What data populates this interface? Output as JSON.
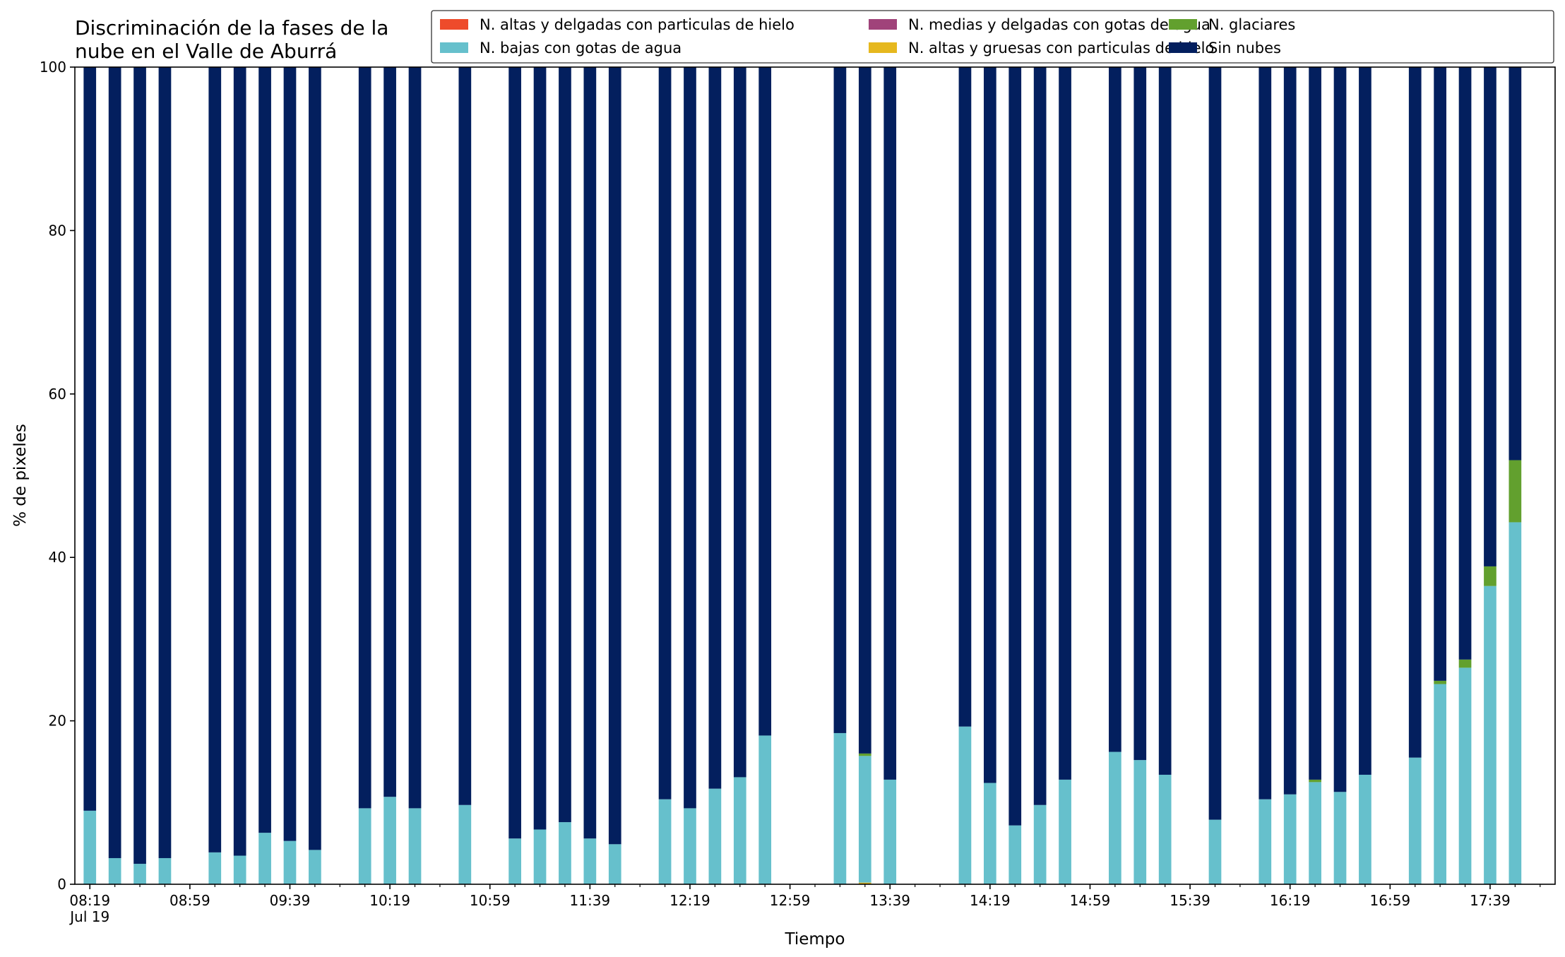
{
  "chart_data": {
    "type": "bar",
    "stacked": true,
    "title": "Discriminación de la fases de la nube en el Valle de Aburrá",
    "title_lines": [
      "Discriminación de la fases de la",
      "nube en el Valle de Aburrá"
    ],
    "xlabel": "Tiempo",
    "ylabel": "% de pixeles",
    "ylim": [
      0,
      100
    ],
    "yticks": [
      "0",
      "20",
      "40",
      "60",
      "80",
      "100"
    ],
    "xlim_minutes": [
      -6,
      586
    ],
    "x_ticks": [
      {
        "t": 0,
        "label": "08:19",
        "sublabel": "Jul 19"
      },
      {
        "t": 40,
        "label": "08:59"
      },
      {
        "t": 80,
        "label": "09:39"
      },
      {
        "t": 120,
        "label": "10:19"
      },
      {
        "t": 160,
        "label": "10:59"
      },
      {
        "t": 200,
        "label": "11:39"
      },
      {
        "t": 240,
        "label": "12:19"
      },
      {
        "t": 280,
        "label": "12:59"
      },
      {
        "t": 320,
        "label": "13:39"
      },
      {
        "t": 360,
        "label": "14:19"
      },
      {
        "t": 400,
        "label": "14:59"
      },
      {
        "t": 440,
        "label": "15:39"
      },
      {
        "t": 480,
        "label": "16:19"
      },
      {
        "t": 520,
        "label": "16:59"
      },
      {
        "t": 560,
        "label": "17:39"
      }
    ],
    "minor_tick_step_minutes": 10,
    "bar_width_minutes": 5,
    "legend_position": "top-right",
    "series": [
      {
        "name": "N. altas y delgadas con particulas de hielo",
        "color": "#ee4b2b"
      },
      {
        "name": "N. altas y gruesas con particulas de hielo",
        "color": "#e6b81e"
      },
      {
        "name": "N. bajas con gotas de agua",
        "color": "#66c0cc"
      },
      {
        "name": "N. glaciares",
        "color": "#62a02e"
      },
      {
        "name": "N. medias y delgadas con gotas de agua",
        "color": "#a0437a"
      },
      {
        "name": "Sin nubes",
        "color": "#031f5e"
      }
    ],
    "legend_order": [
      0,
      2,
      4,
      1,
      3,
      5
    ],
    "bars": [
      {
        "t": 0,
        "v": [
          0,
          0,
          9.0,
          0,
          0,
          91.0
        ]
      },
      {
        "t": 10,
        "v": [
          0,
          0,
          3.2,
          0,
          0,
          96.8
        ]
      },
      {
        "t": 20,
        "v": [
          0,
          0,
          2.5,
          0,
          0,
          97.5
        ]
      },
      {
        "t": 30,
        "v": [
          0,
          0,
          3.2,
          0,
          0,
          96.8
        ]
      },
      {
        "t": 50,
        "v": [
          0,
          0,
          3.9,
          0,
          0,
          96.1
        ]
      },
      {
        "t": 60,
        "v": [
          0,
          0,
          3.5,
          0,
          0,
          96.5
        ]
      },
      {
        "t": 70,
        "v": [
          0,
          0,
          6.3,
          0,
          0,
          93.7
        ]
      },
      {
        "t": 80,
        "v": [
          0,
          0,
          5.3,
          0,
          0,
          94.7
        ]
      },
      {
        "t": 90,
        "v": [
          0,
          0,
          4.2,
          0,
          0,
          95.8
        ]
      },
      {
        "t": 110,
        "v": [
          0,
          0,
          9.3,
          0,
          0,
          90.7
        ]
      },
      {
        "t": 120,
        "v": [
          0,
          0,
          10.7,
          0,
          0,
          89.3
        ]
      },
      {
        "t": 130,
        "v": [
          0,
          0,
          9.3,
          0,
          0,
          90.7
        ]
      },
      {
        "t": 150,
        "v": [
          0,
          0,
          9.7,
          0,
          0,
          90.3
        ]
      },
      {
        "t": 170,
        "v": [
          0,
          0,
          5.6,
          0,
          0,
          94.4
        ]
      },
      {
        "t": 180,
        "v": [
          0,
          0,
          6.7,
          0,
          0,
          93.3
        ]
      },
      {
        "t": 190,
        "v": [
          0,
          0,
          7.6,
          0,
          0,
          92.4
        ]
      },
      {
        "t": 200,
        "v": [
          0,
          0,
          5.6,
          0,
          0,
          94.4
        ]
      },
      {
        "t": 210,
        "v": [
          0,
          0,
          4.9,
          0,
          0,
          95.1
        ]
      },
      {
        "t": 230,
        "v": [
          0,
          0,
          10.4,
          0,
          0,
          89.6
        ]
      },
      {
        "t": 240,
        "v": [
          0,
          0,
          9.3,
          0,
          0,
          90.7
        ]
      },
      {
        "t": 250,
        "v": [
          0,
          0,
          11.7,
          0,
          0,
          88.3
        ]
      },
      {
        "t": 260,
        "v": [
          0,
          0,
          13.1,
          0,
          0,
          86.9
        ]
      },
      {
        "t": 270,
        "v": [
          0,
          0,
          18.2,
          0,
          0,
          81.8
        ]
      },
      {
        "t": 300,
        "v": [
          0,
          0,
          18.5,
          0,
          0,
          81.5
        ]
      },
      {
        "t": 310,
        "v": [
          0,
          0.2,
          15.5,
          0.3,
          0,
          84.0
        ]
      },
      {
        "t": 320,
        "v": [
          0,
          0,
          12.8,
          0,
          0,
          87.2
        ]
      },
      {
        "t": 350,
        "v": [
          0,
          0,
          19.3,
          0,
          0,
          80.7
        ]
      },
      {
        "t": 360,
        "v": [
          0,
          0,
          12.4,
          0,
          0,
          87.6
        ]
      },
      {
        "t": 370,
        "v": [
          0,
          0,
          7.2,
          0,
          0,
          92.8
        ]
      },
      {
        "t": 380,
        "v": [
          0,
          0,
          9.7,
          0,
          0,
          90.3
        ]
      },
      {
        "t": 390,
        "v": [
          0,
          0,
          12.8,
          0,
          0,
          87.2
        ]
      },
      {
        "t": 410,
        "v": [
          0,
          0,
          16.2,
          0,
          0,
          83.8
        ]
      },
      {
        "t": 420,
        "v": [
          0,
          0,
          15.2,
          0,
          0,
          84.8
        ]
      },
      {
        "t": 430,
        "v": [
          0,
          0,
          13.4,
          0,
          0,
          86.6
        ]
      },
      {
        "t": 450,
        "v": [
          0,
          0,
          7.9,
          0,
          0,
          92.1
        ]
      },
      {
        "t": 470,
        "v": [
          0,
          0,
          10.4,
          0,
          0,
          89.6
        ]
      },
      {
        "t": 480,
        "v": [
          0,
          0,
          11.0,
          0,
          0,
          89.0
        ]
      },
      {
        "t": 490,
        "v": [
          0,
          0,
          12.5,
          0.3,
          0,
          87.2
        ]
      },
      {
        "t": 500,
        "v": [
          0,
          0,
          11.3,
          0,
          0,
          88.7
        ]
      },
      {
        "t": 510,
        "v": [
          0,
          0,
          13.4,
          0,
          0,
          86.6
        ]
      },
      {
        "t": 530,
        "v": [
          0,
          0,
          15.5,
          0,
          0,
          84.5
        ]
      },
      {
        "t": 540,
        "v": [
          0,
          0,
          24.5,
          0.4,
          0,
          75.1
        ]
      },
      {
        "t": 550,
        "v": [
          0,
          0,
          26.5,
          1.0,
          0,
          72.5
        ]
      },
      {
        "t": 560,
        "v": [
          0,
          0,
          36.5,
          2.4,
          0,
          61.1
        ]
      },
      {
        "t": 570,
        "v": [
          0,
          0,
          44.3,
          7.6,
          0,
          48.1
        ]
      }
    ]
  }
}
